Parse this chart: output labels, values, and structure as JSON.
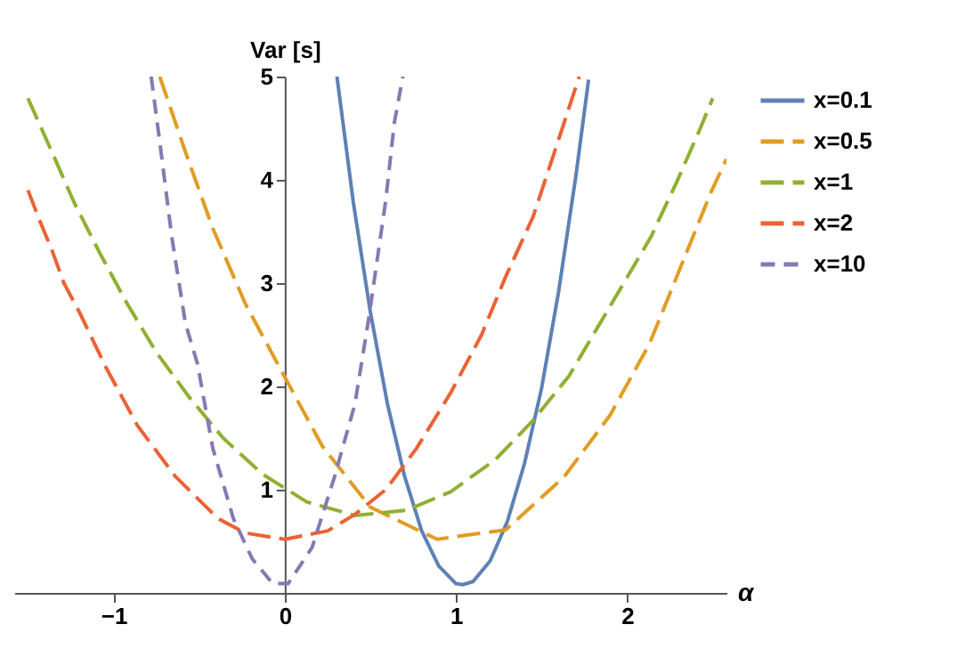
{
  "chart_data": {
    "type": "line",
    "xlabel": "α",
    "ylabel": "Var [s]",
    "xlim": [
      -1.58,
      2.58
    ],
    "ylim": [
      0,
      5
    ],
    "xticks": [
      -1,
      0,
      1,
      2
    ],
    "yticks": [
      1,
      2,
      3,
      4,
      5
    ],
    "grid": false,
    "legend": "right",
    "marker": "none",
    "series": [
      {
        "name": "x=0.1",
        "color": "#5e81b5",
        "line_style": "solid",
        "x": [
          0.305,
          0.4,
          0.5,
          0.6,
          0.7,
          0.8,
          0.9,
          1.0,
          1.04,
          1.1,
          1.2,
          1.3,
          1.4,
          1.5,
          1.6,
          1.7,
          1.775
        ],
        "values": [
          5.0,
          3.79,
          2.72,
          1.83,
          1.13,
          0.6,
          0.26,
          0.09,
          0.08,
          0.11,
          0.31,
          0.69,
          1.25,
          1.98,
          2.92,
          4.03,
          4.97
        ]
      },
      {
        "name": "x=0.5",
        "color": "#e19c24",
        "line_style": "dashed",
        "x": [
          -0.73,
          -0.58,
          -0.42,
          -0.23,
          0,
          0.22,
          0.5,
          0.89,
          1.29,
          1.63,
          1.9,
          2.13,
          2.49,
          2.58
        ],
        "values": [
          5.0,
          4.27,
          3.53,
          2.8,
          2.09,
          1.42,
          0.83,
          0.52,
          0.61,
          1.12,
          1.72,
          2.41,
          3.88,
          4.2
        ]
      },
      {
        "name": "x=1",
        "color": "#8fb032",
        "line_style": "dashed",
        "x": [
          -1.5,
          -1.36,
          -1.23,
          -1.08,
          -0.92,
          -0.75,
          -0.56,
          -0.36,
          -0.13,
          0.13,
          0.41,
          0.71,
          0.97,
          1.23,
          1.45,
          1.66,
          2.14,
          2.29,
          2.42,
          2.5
        ],
        "values": [
          4.79,
          4.27,
          3.78,
          3.29,
          2.8,
          2.33,
          1.9,
          1.5,
          1.15,
          0.88,
          0.75,
          0.8,
          0.98,
          1.29,
          1.67,
          2.1,
          3.45,
          3.98,
          4.47,
          4.79
        ]
      },
      {
        "name": "x=2",
        "color": "#eb6235",
        "line_style": "dashed",
        "x": [
          -1.5,
          -1.43,
          -1.36,
          -1.29,
          -1.2,
          -1.04,
          -0.86,
          -0.64,
          -0.39,
          -0.23,
          0,
          0.25,
          0.41,
          0.59,
          0.77,
          0.97,
          1.15,
          1.29,
          1.45,
          1.57,
          1.72
        ],
        "values": [
          3.9,
          3.6,
          3.32,
          3.0,
          2.72,
          2.17,
          1.62,
          1.13,
          0.72,
          0.58,
          0.52,
          0.6,
          0.76,
          1.0,
          1.4,
          1.94,
          2.5,
          3.06,
          3.64,
          4.24,
          5.0
        ]
      },
      {
        "name": "x=10",
        "color": "#8778b3",
        "line_style": "dotted",
        "x": [
          -0.78,
          -0.72,
          -0.66,
          -0.58,
          -0.51,
          -0.42,
          -0.3,
          -0.19,
          -0.07,
          0.02,
          0.16,
          0.29,
          0.41,
          0.49,
          0.59,
          0.64,
          0.69
        ],
        "values": [
          5.0,
          4.24,
          3.45,
          2.61,
          2.22,
          1.4,
          0.72,
          0.33,
          0.09,
          0.09,
          0.44,
          1.12,
          1.83,
          2.65,
          3.8,
          4.55,
          5.0
        ]
      }
    ]
  }
}
